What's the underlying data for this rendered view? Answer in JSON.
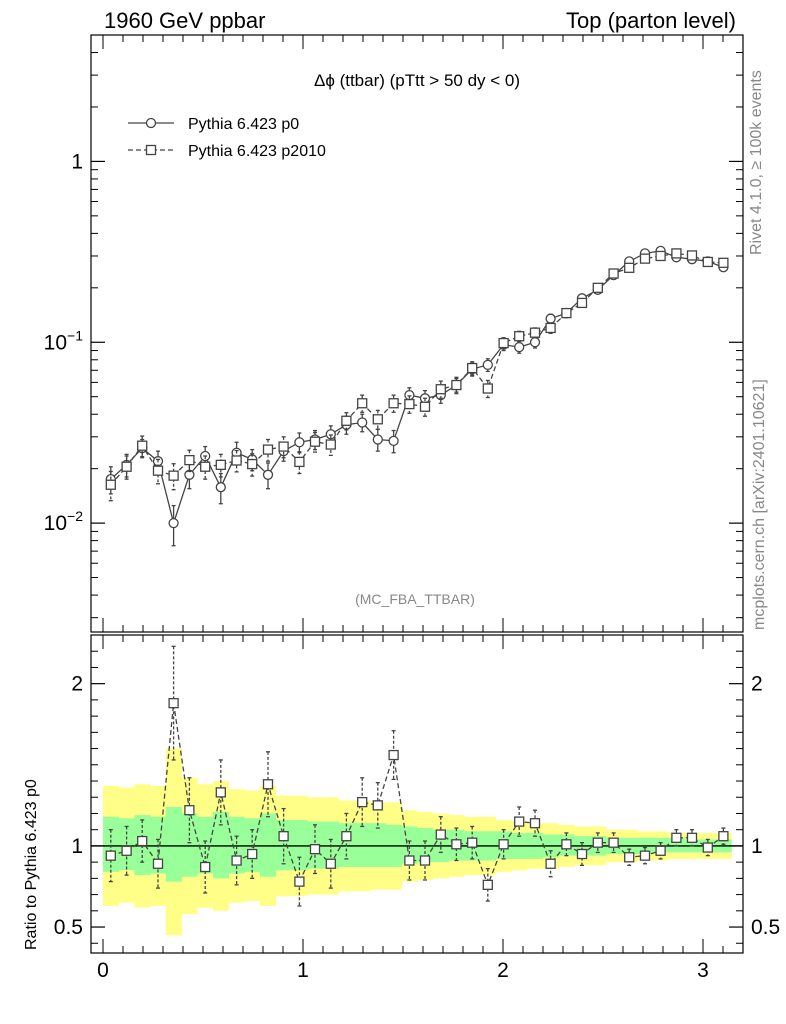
{
  "header": {
    "left": "1960 GeV ppbar",
    "right": "Top (parton level)"
  },
  "side_labels": {
    "rivet": "Rivet 4.1.0, ≥ 100k events",
    "mcplots": "mcplots.cern.ch [arXiv:2401.10621]"
  },
  "chart_data": [
    {
      "type": "line",
      "panel": "main",
      "title": "Δϕ (ttbar) (pTtt > 50 dy < 0)",
      "watermark": "(MC_FBA_TTBAR)",
      "yscale": "log",
      "xlim": [
        -0.06,
        3.2
      ],
      "ylim": [
        0.0025,
        5.0
      ],
      "y_ticks": [
        {
          "label": "10",
          "exp": "−2",
          "value": 0.01
        },
        {
          "label": "10",
          "exp": "−1",
          "value": 0.1
        },
        {
          "label": "1",
          "exp": "",
          "value": 1
        }
      ],
      "legend_position": "top-left",
      "series": [
        {
          "name": "Pythia 6.423 p0",
          "marker": "circle",
          "linestyle": "solid",
          "x": [
            0.039,
            0.118,
            0.196,
            0.275,
            0.353,
            0.432,
            0.511,
            0.589,
            0.668,
            0.746,
            0.825,
            0.903,
            0.982,
            1.06,
            1.139,
            1.217,
            1.296,
            1.374,
            1.453,
            1.532,
            1.61,
            1.689,
            1.767,
            1.846,
            1.924,
            2.003,
            2.081,
            2.16,
            2.238,
            2.317,
            2.395,
            2.474,
            2.553,
            2.631,
            2.71,
            2.788,
            2.867,
            2.945,
            3.024,
            3.102
          ],
          "values": [
            0.0175,
            0.021,
            0.026,
            0.022,
            0.01,
            0.0185,
            0.0235,
            0.0158,
            0.0245,
            0.0225,
            0.0185,
            0.025,
            0.028,
            0.029,
            0.031,
            0.035,
            0.036,
            0.029,
            0.0285,
            0.051,
            0.049,
            0.051,
            0.058,
            0.071,
            0.075,
            0.097,
            0.094,
            0.1,
            0.135,
            0.145,
            0.175,
            0.195,
            0.235,
            0.28,
            0.31,
            0.32,
            0.295,
            0.288,
            0.28,
            0.26
          ],
          "errors": [
            0.003,
            0.003,
            0.003,
            0.003,
            0.0025,
            0.003,
            0.003,
            0.003,
            0.0035,
            0.003,
            0.003,
            0.003,
            0.0035,
            0.0035,
            0.0035,
            0.004,
            0.004,
            0.004,
            0.004,
            0.005,
            0.005,
            0.005,
            0.005,
            0.006,
            0.006,
            0.007,
            0.007,
            0.007,
            0.008,
            0.008,
            0.009,
            0.009,
            0.01,
            0.011,
            0.011,
            0.011,
            0.011,
            0.011,
            0.01,
            0.01
          ]
        },
        {
          "name": "Pythia 6.423 p2010",
          "marker": "square",
          "linestyle": "dashed",
          "x": [
            0.039,
            0.118,
            0.196,
            0.275,
            0.353,
            0.432,
            0.511,
            0.589,
            0.668,
            0.746,
            0.825,
            0.903,
            0.982,
            1.06,
            1.139,
            1.217,
            1.296,
            1.374,
            1.453,
            1.532,
            1.61,
            1.689,
            1.767,
            1.846,
            1.924,
            2.003,
            2.081,
            2.16,
            2.238,
            2.317,
            2.395,
            2.474,
            2.553,
            2.631,
            2.71,
            2.788,
            2.867,
            2.945,
            3.024,
            3.102
          ],
          "values": [
            0.0163,
            0.0205,
            0.0268,
            0.0195,
            0.0183,
            0.0223,
            0.0205,
            0.021,
            0.0222,
            0.0212,
            0.0255,
            0.0265,
            0.0218,
            0.0282,
            0.0272,
            0.0368,
            0.046,
            0.0375,
            0.046,
            0.0455,
            0.044,
            0.055,
            0.058,
            0.072,
            0.0555,
            0.099,
            0.108,
            0.113,
            0.12,
            0.145,
            0.165,
            0.2,
            0.24,
            0.258,
            0.29,
            0.3,
            0.31,
            0.302,
            0.278,
            0.275
          ],
          "errors": [
            0.003,
            0.003,
            0.0035,
            0.003,
            0.003,
            0.003,
            0.003,
            0.003,
            0.003,
            0.003,
            0.0035,
            0.0035,
            0.003,
            0.0035,
            0.0035,
            0.004,
            0.005,
            0.0045,
            0.005,
            0.005,
            0.005,
            0.006,
            0.006,
            0.006,
            0.006,
            0.007,
            0.007,
            0.007,
            0.008,
            0.008,
            0.009,
            0.009,
            0.01,
            0.011,
            0.011,
            0.011,
            0.011,
            0.011,
            0.01,
            0.01
          ]
        }
      ]
    },
    {
      "type": "line",
      "panel": "ratio",
      "ylabel": "Ratio to Pythia 6.423 p0",
      "yscale": "linear",
      "xlim": [
        -0.06,
        3.2
      ],
      "ylim": [
        0.34,
        2.3
      ],
      "reference_line": 1.0,
      "x_ticks": [
        0,
        1,
        2,
        3
      ],
      "x_tick_labels": [
        "0",
        "1",
        "2",
        "3"
      ],
      "y_ticks": [
        0.5,
        1,
        2
      ],
      "y_tick_labels": [
        "0.5",
        "1",
        "2"
      ],
      "bands": {
        "x_edges": [
          0.0,
          0.0785,
          0.157,
          0.236,
          0.314,
          0.393,
          0.471,
          0.55,
          0.628,
          0.707,
          0.785,
          0.864,
          0.942,
          1.021,
          1.1,
          1.178,
          1.257,
          1.335,
          1.414,
          1.492,
          1.571,
          1.649,
          1.728,
          1.806,
          1.885,
          1.963,
          2.042,
          2.12,
          2.199,
          2.277,
          2.356,
          2.435,
          2.513,
          2.592,
          2.67,
          2.749,
          2.827,
          2.906,
          2.984,
          3.063,
          3.1416
        ],
        "green_low": [
          0.84,
          0.85,
          0.82,
          0.83,
          0.78,
          0.81,
          0.83,
          0.8,
          0.83,
          0.84,
          0.81,
          0.85,
          0.85,
          0.86,
          0.86,
          0.87,
          0.87,
          0.87,
          0.87,
          0.89,
          0.9,
          0.9,
          0.91,
          0.91,
          0.91,
          0.92,
          0.92,
          0.92,
          0.93,
          0.94,
          0.94,
          0.94,
          0.95,
          0.95,
          0.95,
          0.96,
          0.96,
          0.96,
          0.96,
          0.96
        ],
        "green_high": [
          1.18,
          1.17,
          1.19,
          1.18,
          1.24,
          1.2,
          1.18,
          1.21,
          1.18,
          1.17,
          1.2,
          1.16,
          1.16,
          1.15,
          1.15,
          1.14,
          1.14,
          1.14,
          1.13,
          1.12,
          1.11,
          1.1,
          1.1,
          1.09,
          1.09,
          1.09,
          1.08,
          1.08,
          1.07,
          1.07,
          1.06,
          1.06,
          1.05,
          1.05,
          1.05,
          1.05,
          1.05,
          1.04,
          1.04,
          1.04
        ],
        "yellow_low": [
          0.63,
          0.65,
          0.62,
          0.63,
          0.45,
          0.58,
          0.62,
          0.6,
          0.65,
          0.66,
          0.63,
          0.69,
          0.69,
          0.7,
          0.7,
          0.72,
          0.72,
          0.73,
          0.73,
          0.78,
          0.79,
          0.8,
          0.81,
          0.82,
          0.82,
          0.84,
          0.85,
          0.86,
          0.86,
          0.87,
          0.88,
          0.88,
          0.9,
          0.9,
          0.91,
          0.91,
          0.92,
          0.92,
          0.92,
          0.92
        ],
        "yellow_high": [
          1.37,
          1.36,
          1.38,
          1.37,
          1.6,
          1.42,
          1.38,
          1.4,
          1.35,
          1.34,
          1.37,
          1.31,
          1.31,
          1.3,
          1.3,
          1.28,
          1.28,
          1.27,
          1.27,
          1.22,
          1.21,
          1.2,
          1.19,
          1.18,
          1.18,
          1.16,
          1.15,
          1.14,
          1.14,
          1.13,
          1.12,
          1.12,
          1.1,
          1.1,
          1.09,
          1.09,
          1.08,
          1.08,
          1.08,
          1.08
        ]
      },
      "series": [
        {
          "name": "Pythia 6.423 p2010 / Pythia 6.423 p0",
          "marker": "square",
          "linestyle": "dashed",
          "x": [
            0.039,
            0.118,
            0.196,
            0.275,
            0.353,
            0.432,
            0.511,
            0.589,
            0.668,
            0.746,
            0.825,
            0.903,
            0.982,
            1.06,
            1.139,
            1.217,
            1.296,
            1.374,
            1.453,
            1.532,
            1.61,
            1.689,
            1.767,
            1.846,
            1.924,
            2.003,
            2.081,
            2.16,
            2.238,
            2.317,
            2.395,
            2.474,
            2.553,
            2.631,
            2.71,
            2.788,
            2.867,
            2.945,
            3.024,
            3.102
          ],
          "values": [
            0.94,
            0.97,
            1.03,
            0.89,
            1.88,
            1.22,
            0.87,
            1.33,
            0.91,
            0.95,
            1.38,
            1.06,
            0.78,
            0.98,
            0.89,
            1.06,
            1.27,
            1.25,
            1.56,
            0.91,
            0.91,
            1.07,
            1.01,
            1.02,
            0.76,
            1.01,
            1.15,
            1.14,
            0.89,
            1.01,
            0.95,
            1.02,
            1.02,
            0.93,
            0.94,
            0.97,
            1.05,
            1.05,
            0.99,
            1.06
          ],
          "errors": [
            0.16,
            0.15,
            0.13,
            0.15,
            0.35,
            0.2,
            0.16,
            0.2,
            0.15,
            0.15,
            0.2,
            0.17,
            0.15,
            0.15,
            0.15,
            0.14,
            0.15,
            0.14,
            0.15,
            0.12,
            0.12,
            0.11,
            0.1,
            0.1,
            0.1,
            0.09,
            0.09,
            0.08,
            0.08,
            0.07,
            0.07,
            0.06,
            0.06,
            0.05,
            0.05,
            0.05,
            0.05,
            0.05,
            0.05,
            0.05
          ]
        }
      ]
    }
  ]
}
